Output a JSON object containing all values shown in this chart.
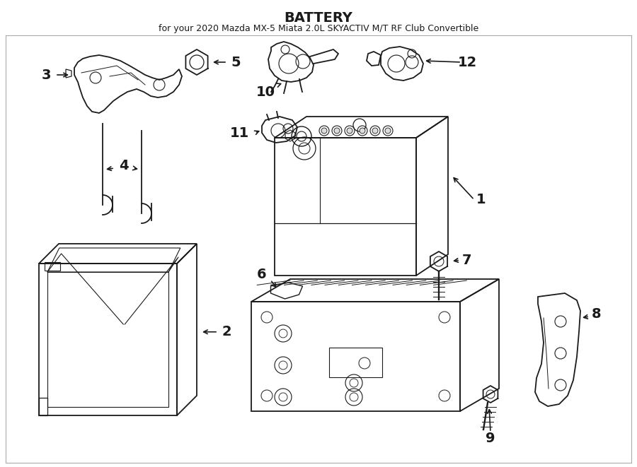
{
  "title": "BATTERY",
  "subtitle": "for your 2020 Mazda MX-5 Miata 2.0L SKYACTIV M/T RF Club Convertible",
  "bg": "#ffffff",
  "lc": "#1a1a1a",
  "label_fs": 14,
  "title_fs": 14,
  "sub_fs": 9,
  "lw": 1.3
}
